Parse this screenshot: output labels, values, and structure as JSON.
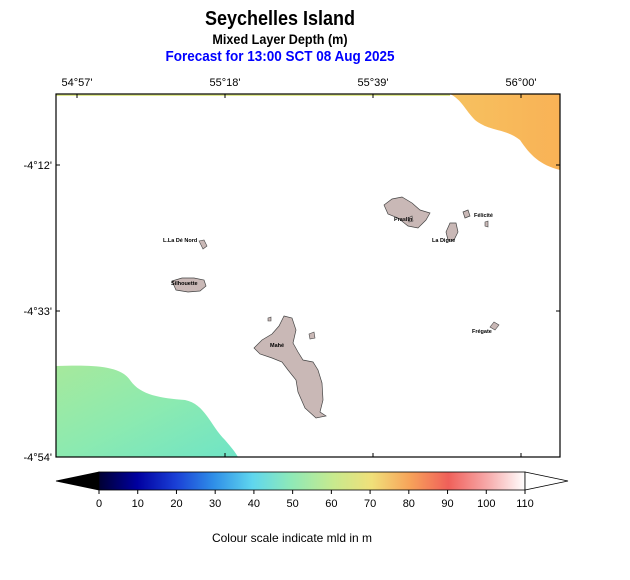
{
  "header": {
    "title": "Seychelles Island",
    "subtitle": "Mixed Layer Depth (m)",
    "forecast": "Forecast for  13:00 SCT 08 Aug 2025"
  },
  "map": {
    "lon_labels": [
      "54°57'",
      "55°18'",
      "55°39'",
      "56°00'"
    ],
    "lat_labels": [
      "-4°12'",
      "-4°33'",
      "-4°54'"
    ],
    "places": [
      "L.La Dé Nord",
      "Silhouette",
      "Praslin",
      "Félicité",
      "La Digue",
      "Mahé",
      "Frégate"
    ]
  },
  "colorbar": {
    "ticks": [
      "0",
      "10",
      "20",
      "30",
      "40",
      "50",
      "60",
      "70",
      "80",
      "90",
      "100",
      "110"
    ],
    "caption": "Colour scale indicate mld in m",
    "colors": [
      "#000033",
      "#0000a0",
      "#1a3fd6",
      "#2f8fe8",
      "#5fd6ee",
      "#8ee9b8",
      "#c7ea8e",
      "#f0e07a",
      "#f7a35a",
      "#f0605a",
      "#f6a8a8",
      "#ffffff"
    ]
  },
  "land_color": "#c9b8b6",
  "field_colors": {
    "northeast": "#f8b45c",
    "southwest": "#8ceab0"
  }
}
